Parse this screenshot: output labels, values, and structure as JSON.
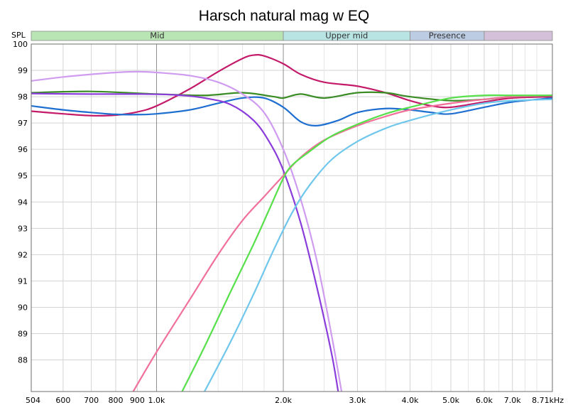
{
  "chart_data": {
    "type": "line",
    "title": "Harsch natural mag w EQ",
    "ylabel": "SPL",
    "xlabel": "",
    "x_scale": "log",
    "xlim": [
      504,
      8710
    ],
    "ylim": [
      86.8,
      100
    ],
    "grid": true,
    "y_ticks": [
      "100",
      "99",
      "98",
      "97",
      "96",
      "95",
      "94",
      "93",
      "92",
      "91",
      "90",
      "89",
      "88"
    ],
    "y_tick_values": [
      100,
      99,
      98,
      97,
      96,
      95,
      94,
      93,
      92,
      91,
      90,
      89,
      88
    ],
    "x_ticks": [
      "504",
      "600",
      "700",
      "800",
      "900",
      "1.0k",
      "2.0k",
      "3.0k",
      "4.0k",
      "5.0k",
      "6.0k",
      "7.0k",
      "8.71kHz"
    ],
    "x_tick_values": [
      504,
      600,
      700,
      800,
      900,
      1000,
      2000,
      3000,
      4000,
      5000,
      6000,
      7000,
      8710
    ],
    "minor_x_grid": [
      1200,
      1400,
      1600,
      1800,
      2500,
      3500,
      4500,
      5500,
      6500,
      7500,
      8000
    ],
    "bands": [
      {
        "label": "Mid",
        "from": 504,
        "to": 2000,
        "color": "#b9e4b4"
      },
      {
        "label": "Upper mid",
        "from": 2000,
        "to": 4000,
        "color": "#b8e5e3"
      },
      {
        "label": "Presence",
        "from": 4000,
        "to": 6000,
        "color": "#bccce3"
      },
      {
        "label": "",
        "from": 6000,
        "to": 8710,
        "color": "#d4c1d9"
      }
    ],
    "series": [
      {
        "color": "#c41a6a",
        "points": [
          [
            504,
            97.45
          ],
          [
            600,
            97.35
          ],
          [
            700,
            97.28
          ],
          [
            800,
            97.3
          ],
          [
            900,
            97.42
          ],
          [
            1000,
            97.65
          ],
          [
            1200,
            98.3
          ],
          [
            1400,
            98.95
          ],
          [
            1600,
            99.45
          ],
          [
            1700,
            99.58
          ],
          [
            1800,
            99.55
          ],
          [
            2000,
            99.25
          ],
          [
            2200,
            98.85
          ],
          [
            2500,
            98.55
          ],
          [
            3000,
            98.4
          ],
          [
            3500,
            98.15
          ],
          [
            4000,
            97.85
          ],
          [
            4500,
            97.65
          ],
          [
            5000,
            97.6
          ],
          [
            6000,
            97.8
          ],
          [
            7000,
            97.95
          ],
          [
            8710,
            98.0
          ]
        ]
      },
      {
        "color": "#1f6fd1",
        "points": [
          [
            504,
            97.65
          ],
          [
            600,
            97.5
          ],
          [
            700,
            97.4
          ],
          [
            800,
            97.33
          ],
          [
            900,
            97.32
          ],
          [
            1000,
            97.35
          ],
          [
            1200,
            97.5
          ],
          [
            1400,
            97.75
          ],
          [
            1600,
            97.95
          ],
          [
            1800,
            97.95
          ],
          [
            2000,
            97.6
          ],
          [
            2200,
            97.05
          ],
          [
            2400,
            96.9
          ],
          [
            2700,
            97.1
          ],
          [
            3000,
            97.4
          ],
          [
            3500,
            97.55
          ],
          [
            4000,
            97.5
          ],
          [
            4500,
            97.4
          ],
          [
            5000,
            97.35
          ],
          [
            6000,
            97.6
          ],
          [
            7000,
            97.8
          ],
          [
            8710,
            97.95
          ]
        ]
      },
      {
        "color": "#3a8c25",
        "points": [
          [
            504,
            98.15
          ],
          [
            700,
            98.2
          ],
          [
            1000,
            98.1
          ],
          [
            1300,
            98.05
          ],
          [
            1600,
            98.15
          ],
          [
            1900,
            98.0
          ],
          [
            2000,
            97.95
          ],
          [
            2200,
            98.1
          ],
          [
            2500,
            97.95
          ],
          [
            3000,
            98.15
          ],
          [
            3500,
            98.15
          ],
          [
            4000,
            98.0
          ],
          [
            5000,
            97.85
          ],
          [
            6000,
            97.9
          ],
          [
            7000,
            98.0
          ],
          [
            8710,
            98.05
          ]
        ]
      },
      {
        "color": "#cf9cf0",
        "points": [
          [
            504,
            98.6
          ],
          [
            600,
            98.75
          ],
          [
            700,
            98.85
          ],
          [
            800,
            98.92
          ],
          [
            900,
            98.95
          ],
          [
            1000,
            98.92
          ],
          [
            1200,
            98.8
          ],
          [
            1400,
            98.55
          ],
          [
            1600,
            98.1
          ],
          [
            1800,
            97.4
          ],
          [
            2000,
            96.0
          ],
          [
            2200,
            94.1
          ],
          [
            2400,
            91.8
          ],
          [
            2600,
            89.0
          ],
          [
            2750,
            86.8
          ]
        ]
      },
      {
        "color": "#8a3ddb",
        "points": [
          [
            504,
            98.12
          ],
          [
            700,
            98.1
          ],
          [
            900,
            98.1
          ],
          [
            1100,
            98.07
          ],
          [
            1300,
            97.95
          ],
          [
            1500,
            97.7
          ],
          [
            1700,
            97.1
          ],
          [
            1850,
            96.3
          ],
          [
            2000,
            95.2
          ],
          [
            2200,
            93.2
          ],
          [
            2400,
            90.8
          ],
          [
            2600,
            88.3
          ],
          [
            2700,
            86.8
          ]
        ]
      },
      {
        "color": "#f0709a",
        "points": [
          [
            880,
            86.8
          ],
          [
            1000,
            88.3
          ],
          [
            1200,
            90.3
          ],
          [
            1400,
            92.0
          ],
          [
            1600,
            93.3
          ],
          [
            1800,
            94.2
          ],
          [
            2000,
            95.0
          ],
          [
            2200,
            95.7
          ],
          [
            2500,
            96.35
          ],
          [
            3000,
            96.9
          ],
          [
            3500,
            97.25
          ],
          [
            4000,
            97.5
          ],
          [
            5000,
            97.75
          ],
          [
            6000,
            97.9
          ],
          [
            7000,
            98.0
          ],
          [
            8710,
            98.05
          ]
        ]
      },
      {
        "color": "#56e049",
        "points": [
          [
            1150,
            86.8
          ],
          [
            1300,
            88.5
          ],
          [
            1500,
            90.6
          ],
          [
            1700,
            92.4
          ],
          [
            1850,
            93.7
          ],
          [
            2000,
            94.9
          ],
          [
            2100,
            95.4
          ],
          [
            2300,
            95.9
          ],
          [
            2600,
            96.5
          ],
          [
            3000,
            96.95
          ],
          [
            3500,
            97.35
          ],
          [
            4000,
            97.6
          ],
          [
            5000,
            97.95
          ],
          [
            6000,
            98.05
          ],
          [
            7000,
            98.05
          ],
          [
            8710,
            98.05
          ]
        ]
      },
      {
        "color": "#6fc7ec",
        "points": [
          [
            1300,
            86.8
          ],
          [
            1500,
            88.7
          ],
          [
            1700,
            90.5
          ],
          [
            1900,
            92.2
          ],
          [
            2100,
            93.6
          ],
          [
            2300,
            94.6
          ],
          [
            2600,
            95.6
          ],
          [
            3000,
            96.3
          ],
          [
            3500,
            96.8
          ],
          [
            4000,
            97.1
          ],
          [
            5000,
            97.5
          ],
          [
            6000,
            97.75
          ],
          [
            7000,
            97.85
          ],
          [
            8710,
            97.9
          ]
        ]
      }
    ]
  }
}
